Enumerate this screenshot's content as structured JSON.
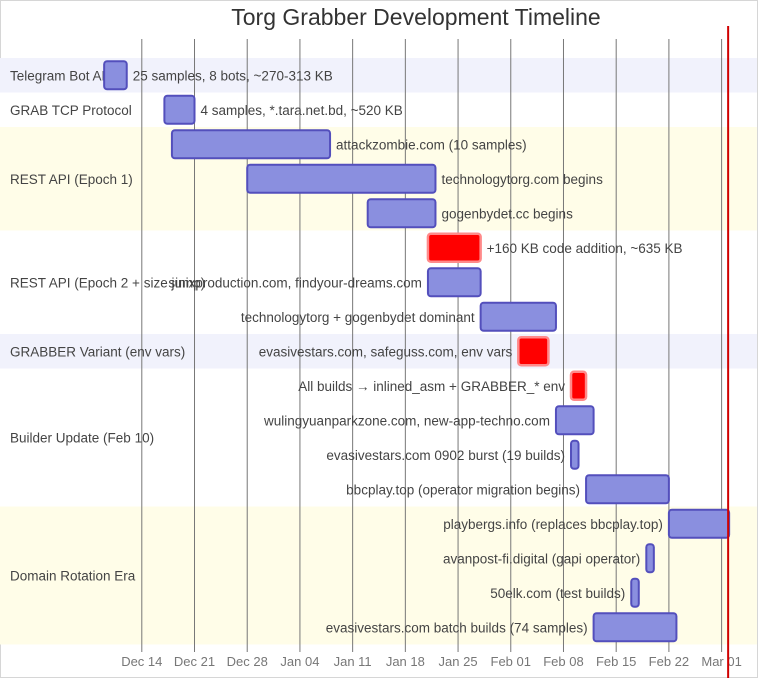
{
  "chart_data": {
    "type": "gantt",
    "title": "Torg Grabber Development Timeline",
    "x_ticks": [
      "Dec 14",
      "Dec 21",
      "Dec 28",
      "Jan 04",
      "Jan 11",
      "Jan 18",
      "Jan 25",
      "Feb 01",
      "Feb 08",
      "Feb 15",
      "Feb 22",
      "Mar 01"
    ],
    "x_range": [
      "Dec 07",
      "Mar 03"
    ],
    "today_marker": "Mar 02",
    "grid": true,
    "colors": {
      "task_fill": "#8a8fdf",
      "task_stroke": "#534fbc",
      "crit_fill": "#ff0000",
      "crit_stroke": "#ff8a8a",
      "today": "#d00000",
      "section_a": "#f1f2fc",
      "section_b": "#ffffff",
      "section_c": "#fffde8"
    },
    "sections": [
      {
        "name": "Telegram Bot API",
        "tasks": [
          {
            "label": "25 samples, 8 bots, ~270-313 KB",
            "start": "Dec 09",
            "end": "Dec 12",
            "crit": false
          }
        ]
      },
      {
        "name": "GRAB TCP Protocol",
        "tasks": [
          {
            "label": "4 samples, *.tara.net.bd, ~520 KB",
            "start": "Dec 17",
            "end": "Dec 21",
            "crit": false
          }
        ]
      },
      {
        "name": "REST API (Epoch 1)",
        "tasks": [
          {
            "label": "attackzombie.com (10 samples)",
            "start": "Dec 18",
            "end": "Jan 08",
            "crit": false
          },
          {
            "label": "technologytorg.com begins",
            "start": "Dec 28",
            "end": "Jan 22",
            "crit": false
          },
          {
            "label": "gogenbydet.cc begins",
            "start": "Jan 13",
            "end": "Jan 22",
            "crit": false
          }
        ]
      },
      {
        "name": "REST API (Epoch 2 + size jump)",
        "tasks": [
          {
            "label": "+160 KB code addition, ~635 KB",
            "start": "Jan 21",
            "end": "Jan 28",
            "crit": true
          },
          {
            "label": "sinixproduction.com, findyour-dreams.com",
            "start": "Jan 21",
            "end": "Jan 28",
            "crit": false
          },
          {
            "label": "technologytorg + gogenbydet dominant",
            "start": "Jan 28",
            "end": "Feb 07",
            "crit": false
          }
        ]
      },
      {
        "name": "GRABBER Variant (env vars)",
        "tasks": [
          {
            "label": "evasivestars.com, safeguss.com, env vars",
            "start": "Feb 02",
            "end": "Feb 06",
            "crit": true
          }
        ]
      },
      {
        "name": "Builder Update (Feb 10)",
        "tasks": [
          {
            "label": "All builds → inlined_asm + GRABBER_* env",
            "start": "Feb 09",
            "end": "Feb 11",
            "crit": true
          },
          {
            "label": "wulingyuanparkzone.com, new-app-techno.com",
            "start": "Feb 07",
            "end": "Feb 12",
            "crit": false
          },
          {
            "label": "evasivestars.com 0902 burst (19 builds)",
            "start": "Feb 09",
            "end": "Feb 10",
            "crit": false
          },
          {
            "label": "bbcplay.top (operator migration begins)",
            "start": "Feb 11",
            "end": "Feb 22",
            "crit": false
          }
        ]
      },
      {
        "name": "Domain Rotation Era",
        "tasks": [
          {
            "label": "playbergs.info (replaces bbcplay.top)",
            "start": "Feb 22",
            "end": "Mar 02",
            "crit": false
          },
          {
            "label": "avanpost-fi.digital (gapi operator)",
            "start": "Feb 19",
            "end": "Feb 20",
            "crit": false
          },
          {
            "label": "50elk.com (test builds)",
            "start": "Feb 17",
            "end": "Feb 18",
            "crit": false
          },
          {
            "label": "evasivestars.com batch builds (74 samples)",
            "start": "Feb 12",
            "end": "Feb 23",
            "crit": false
          }
        ]
      }
    ]
  }
}
